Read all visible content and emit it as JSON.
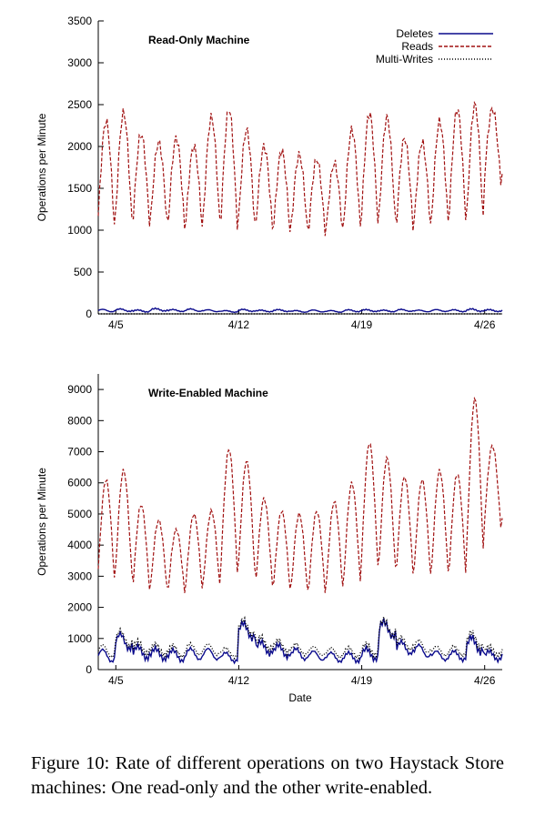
{
  "caption": "Figure 10: Rate of different operations on two Haystack Store machines: One read-only and the other write-enabled.",
  "chart_data": [
    {
      "type": "line",
      "title": "Read-Only Machine",
      "xlabel": "",
      "ylabel": "Operations per Minute",
      "ylim": [
        0,
        3500
      ],
      "yticks": [
        0,
        500,
        1000,
        1500,
        2000,
        2500,
        3000,
        3500
      ],
      "xlim": [
        "4/4",
        "4/27"
      ],
      "xticks": [
        "4/5",
        "4/12",
        "4/19",
        "4/26"
      ],
      "legend_position": "top-right",
      "series": [
        {
          "name": "Deletes",
          "style": "solid",
          "color": "#0a0a8c",
          "base": [
            40,
            45,
            35,
            50,
            40,
            45,
            38,
            30,
            42,
            35,
            40,
            30,
            35,
            30,
            38,
            40,
            35,
            42,
            35,
            40,
            38,
            45,
            40
          ],
          "amplitude": [
            15,
            15,
            12,
            15,
            12,
            15,
            12,
            10,
            12,
            10,
            12,
            10,
            12,
            10,
            12,
            12,
            10,
            12,
            10,
            12,
            12,
            15,
            12
          ]
        },
        {
          "name": "Reads",
          "style": "dashed",
          "color": "#a01010",
          "peak": [
            2300,
            2400,
            2150,
            2050,
            2100,
            2000,
            2350,
            2450,
            2200,
            2000,
            1950,
            1900,
            1850,
            1800,
            2200,
            2400,
            2350,
            2100,
            2050,
            2300,
            2450,
            2500,
            2450
          ],
          "trough": [
            1000,
            1050,
            1050,
            1050,
            1000,
            1000,
            1050,
            1000,
            1000,
            1000,
            950,
            950,
            950,
            950,
            1000,
            1050,
            1050,
            1000,
            1000,
            1050,
            1100,
            1050,
            1550
          ]
        },
        {
          "name": "Multi-Writes",
          "style": "dotted",
          "color": "#000000",
          "base": [
            0,
            0,
            0,
            0,
            0,
            0,
            0,
            0,
            0,
            0,
            0,
            0,
            0,
            0,
            0,
            0,
            0,
            0,
            0,
            0,
            0,
            0,
            0
          ],
          "amplitude": [
            0,
            0,
            0,
            0,
            0,
            0,
            0,
            0,
            0,
            0,
            0,
            0,
            0,
            0,
            0,
            0,
            0,
            0,
            0,
            0,
            0,
            0,
            0
          ]
        }
      ]
    },
    {
      "type": "line",
      "title": "Write-Enabled Machine",
      "xlabel": "Date",
      "ylabel": "Operations per Minute",
      "ylim": [
        0,
        9500
      ],
      "yticks": [
        0,
        1000,
        2000,
        3000,
        4000,
        5000,
        6000,
        7000,
        8000,
        9000
      ],
      "xlim": [
        "4/4",
        "4/27"
      ],
      "xticks": [
        "4/5",
        "4/12",
        "4/19",
        "4/26"
      ],
      "legend_position": "none",
      "series": [
        {
          "name": "Deletes",
          "style": "solid",
          "color": "#0a0a8c",
          "base": [
            450,
            900,
            550,
            500,
            450,
            500,
            500,
            400,
            1250,
            700,
            600,
            500,
            450,
            400,
            400,
            500,
            1300,
            700,
            600,
            450,
            450,
            800,
            450
          ],
          "amplitude": [
            200,
            250,
            200,
            180,
            180,
            180,
            180,
            150,
            250,
            200,
            200,
            180,
            150,
            150,
            150,
            180,
            250,
            200,
            200,
            150,
            150,
            250,
            150
          ]
        },
        {
          "name": "Reads",
          "style": "dashed",
          "color": "#a01010",
          "peak": [
            6100,
            6400,
            5300,
            4800,
            4500,
            5000,
            5100,
            7100,
            6700,
            5500,
            5100,
            5000,
            5100,
            5400,
            6000,
            7300,
            6800,
            6200,
            6100,
            6400,
            6300,
            8700,
            7200
          ],
          "trough": [
            2800,
            2900,
            2500,
            2500,
            2400,
            2500,
            2600,
            3000,
            3000,
            2600,
            2500,
            2400,
            2400,
            2500,
            2700,
            3200,
            3100,
            3000,
            2900,
            3000,
            3000,
            3600,
            4500
          ]
        },
        {
          "name": "Multi-Writes",
          "style": "dotted",
          "color": "#000000",
          "base": [
            600,
            1000,
            700,
            650,
            600,
            650,
            650,
            550,
            1350,
            850,
            750,
            650,
            600,
            550,
            550,
            650,
            1350,
            850,
            750,
            600,
            600,
            950,
            600
          ],
          "amplitude": [
            200,
            250,
            200,
            180,
            180,
            180,
            180,
            150,
            250,
            200,
            200,
            180,
            150,
            150,
            150,
            180,
            250,
            200,
            200,
            150,
            150,
            250,
            150
          ]
        }
      ]
    }
  ]
}
